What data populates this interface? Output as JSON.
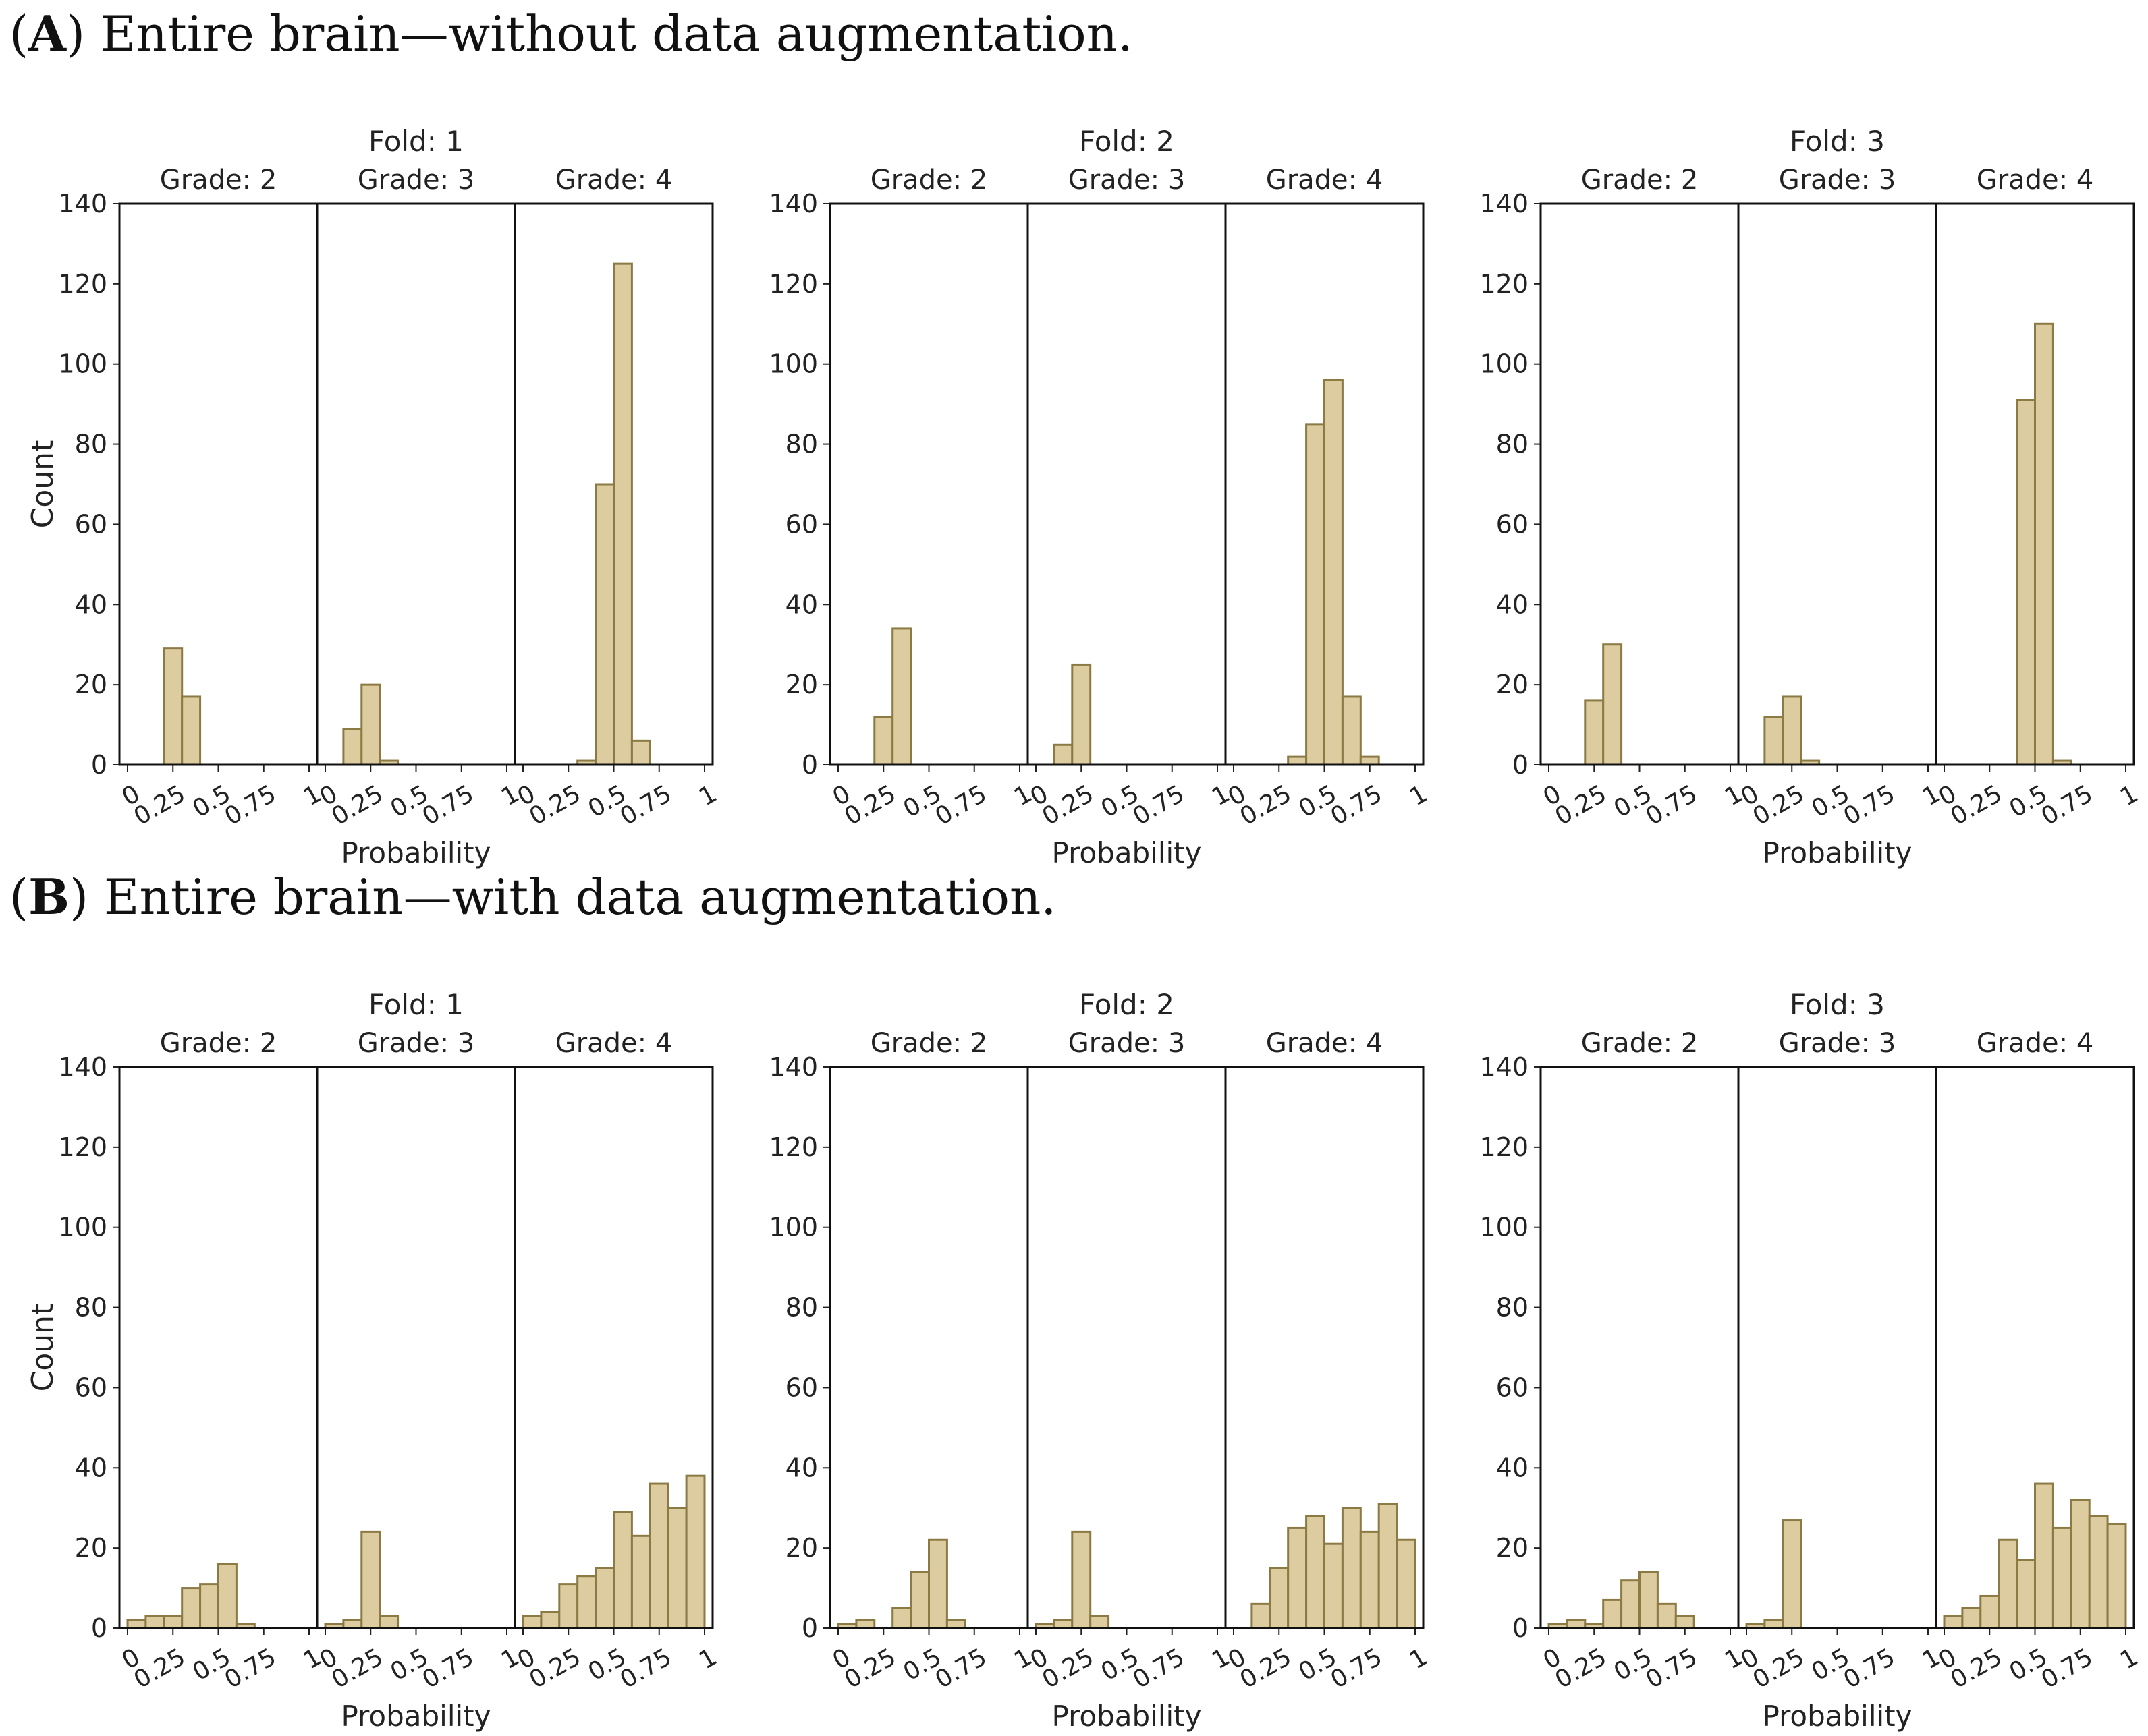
{
  "bar_fill": "#dccca0",
  "bar_stroke": "#8c7a45",
  "panels": [
    {
      "caption_letter": "A",
      "caption_text": ") Entire brain—without data augmentation."
    },
    {
      "caption_letter": "B",
      "caption_text": ") Entire brain—with data augmentation."
    }
  ],
  "chart_data": [
    {
      "type": "bar",
      "panel": "A",
      "title": "Fold: 1",
      "xlabel": "Probability",
      "ylabel": "Count",
      "ylim": [
        0,
        140
      ],
      "yticks": [
        0,
        20,
        40,
        60,
        80,
        100,
        120,
        140
      ],
      "xticks": [
        "0",
        "0.25",
        "0.5",
        "0.75",
        "1"
      ],
      "facets": [
        {
          "title": "Grade: 2",
          "bins": [
            [
              0.2,
              0.3,
              29
            ],
            [
              0.3,
              0.4,
              17
            ]
          ]
        },
        {
          "title": "Grade: 3",
          "bins": [
            [
              0.1,
              0.2,
              9
            ],
            [
              0.2,
              0.3,
              20
            ],
            [
              0.3,
              0.4,
              1
            ]
          ]
        },
        {
          "title": "Grade: 4",
          "bins": [
            [
              0.3,
              0.4,
              1
            ],
            [
              0.4,
              0.5,
              70
            ],
            [
              0.5,
              0.6,
              125
            ],
            [
              0.6,
              0.7,
              6
            ]
          ]
        }
      ]
    },
    {
      "type": "bar",
      "panel": "A",
      "title": "Fold: 2",
      "xlabel": "Probability",
      "ylabel": "",
      "ylim": [
        0,
        140
      ],
      "yticks": [
        0,
        20,
        40,
        60,
        80,
        100,
        120,
        140
      ],
      "xticks": [
        "0",
        "0.25",
        "0.5",
        "0.75",
        "1"
      ],
      "facets": [
        {
          "title": "Grade: 2",
          "bins": [
            [
              0.2,
              0.3,
              12
            ],
            [
              0.3,
              0.4,
              34
            ]
          ]
        },
        {
          "title": "Grade: 3",
          "bins": [
            [
              0.1,
              0.2,
              5
            ],
            [
              0.2,
              0.3,
              25
            ]
          ]
        },
        {
          "title": "Grade: 4",
          "bins": [
            [
              0.3,
              0.4,
              2
            ],
            [
              0.4,
              0.5,
              85
            ],
            [
              0.5,
              0.6,
              96
            ],
            [
              0.6,
              0.7,
              17
            ],
            [
              0.7,
              0.8,
              2
            ]
          ]
        }
      ]
    },
    {
      "type": "bar",
      "panel": "A",
      "title": "Fold: 3",
      "xlabel": "Probability",
      "ylabel": "",
      "ylim": [
        0,
        140
      ],
      "yticks": [
        0,
        20,
        40,
        60,
        80,
        100,
        120,
        140
      ],
      "xticks": [
        "0",
        "0.25",
        "0.5",
        "0.75",
        "1"
      ],
      "facets": [
        {
          "title": "Grade: 2",
          "bins": [
            [
              0.2,
              0.3,
              16
            ],
            [
              0.3,
              0.4,
              30
            ]
          ]
        },
        {
          "title": "Grade: 3",
          "bins": [
            [
              0.1,
              0.2,
              12
            ],
            [
              0.2,
              0.3,
              17
            ],
            [
              0.3,
              0.4,
              1
            ]
          ]
        },
        {
          "title": "Grade: 4",
          "bins": [
            [
              0.4,
              0.5,
              91
            ],
            [
              0.5,
              0.6,
              110
            ],
            [
              0.6,
              0.7,
              1
            ]
          ]
        }
      ]
    },
    {
      "type": "bar",
      "panel": "B",
      "title": "Fold: 1",
      "xlabel": "Probability",
      "ylabel": "Count",
      "ylim": [
        0,
        140
      ],
      "yticks": [
        0,
        20,
        40,
        60,
        80,
        100,
        120,
        140
      ],
      "xticks": [
        "0",
        "0.25",
        "0.5",
        "0.75",
        "1"
      ],
      "facets": [
        {
          "title": "Grade: 2",
          "bins": [
            [
              0,
              0.1,
              2
            ],
            [
              0.1,
              0.2,
              3
            ],
            [
              0.2,
              0.3,
              3
            ],
            [
              0.3,
              0.4,
              10
            ],
            [
              0.4,
              0.5,
              11
            ],
            [
              0.5,
              0.6,
              16
            ],
            [
              0.6,
              0.7,
              1
            ]
          ]
        },
        {
          "title": "Grade: 3",
          "bins": [
            [
              0,
              0.1,
              1
            ],
            [
              0.1,
              0.2,
              2
            ],
            [
              0.2,
              0.3,
              24
            ],
            [
              0.3,
              0.4,
              3
            ]
          ]
        },
        {
          "title": "Grade: 4",
          "bins": [
            [
              0,
              0.1,
              3
            ],
            [
              0.1,
              0.2,
              4
            ],
            [
              0.2,
              0.3,
              11
            ],
            [
              0.3,
              0.4,
              13
            ],
            [
              0.4,
              0.5,
              15
            ],
            [
              0.5,
              0.6,
              29
            ],
            [
              0.6,
              0.7,
              23
            ],
            [
              0.7,
              0.8,
              36
            ],
            [
              0.8,
              0.9,
              30
            ],
            [
              0.9,
              1.0,
              38
            ]
          ]
        }
      ]
    },
    {
      "type": "bar",
      "panel": "B",
      "title": "Fold: 2",
      "xlabel": "Probability",
      "ylabel": "",
      "ylim": [
        0,
        140
      ],
      "yticks": [
        0,
        20,
        40,
        60,
        80,
        100,
        120,
        140
      ],
      "xticks": [
        "0",
        "0.25",
        "0.5",
        "0.75",
        "1"
      ],
      "facets": [
        {
          "title": "Grade: 2",
          "bins": [
            [
              0,
              0.1,
              1
            ],
            [
              0.1,
              0.2,
              2
            ],
            [
              0.3,
              0.4,
              5
            ],
            [
              0.4,
              0.5,
              14
            ],
            [
              0.5,
              0.6,
              22
            ],
            [
              0.6,
              0.7,
              2
            ]
          ]
        },
        {
          "title": "Grade: 3",
          "bins": [
            [
              0,
              0.1,
              1
            ],
            [
              0.1,
              0.2,
              2
            ],
            [
              0.2,
              0.3,
              24
            ],
            [
              0.3,
              0.4,
              3
            ]
          ]
        },
        {
          "title": "Grade: 4",
          "bins": [
            [
              0.1,
              0.2,
              6
            ],
            [
              0.2,
              0.3,
              15
            ],
            [
              0.3,
              0.4,
              25
            ],
            [
              0.4,
              0.5,
              28
            ],
            [
              0.5,
              0.6,
              21
            ],
            [
              0.6,
              0.7,
              30
            ],
            [
              0.7,
              0.8,
              24
            ],
            [
              0.8,
              0.9,
              31
            ],
            [
              0.9,
              1.0,
              22
            ]
          ]
        }
      ]
    },
    {
      "type": "bar",
      "panel": "B",
      "title": "Fold: 3",
      "xlabel": "Probability",
      "ylabel": "",
      "ylim": [
        0,
        140
      ],
      "yticks": [
        0,
        20,
        40,
        60,
        80,
        100,
        120,
        140
      ],
      "xticks": [
        "0",
        "0.25",
        "0.5",
        "0.75",
        "1"
      ],
      "facets": [
        {
          "title": "Grade: 2",
          "bins": [
            [
              0,
              0.1,
              1
            ],
            [
              0.1,
              0.2,
              2
            ],
            [
              0.2,
              0.3,
              1
            ],
            [
              0.3,
              0.4,
              7
            ],
            [
              0.4,
              0.5,
              12
            ],
            [
              0.5,
              0.6,
              14
            ],
            [
              0.6,
              0.7,
              6
            ],
            [
              0.7,
              0.8,
              3
            ]
          ]
        },
        {
          "title": "Grade: 3",
          "bins": [
            [
              0,
              0.1,
              1
            ],
            [
              0.1,
              0.2,
              2
            ],
            [
              0.2,
              0.3,
              27
            ]
          ]
        },
        {
          "title": "Grade: 4",
          "bins": [
            [
              0,
              0.1,
              3
            ],
            [
              0.1,
              0.2,
              5
            ],
            [
              0.2,
              0.3,
              8
            ],
            [
              0.3,
              0.4,
              22
            ],
            [
              0.4,
              0.5,
              17
            ],
            [
              0.5,
              0.6,
              36
            ],
            [
              0.6,
              0.7,
              25
            ],
            [
              0.7,
              0.8,
              32
            ],
            [
              0.8,
              0.9,
              28
            ],
            [
              0.9,
              1.0,
              26
            ]
          ]
        }
      ]
    }
  ]
}
